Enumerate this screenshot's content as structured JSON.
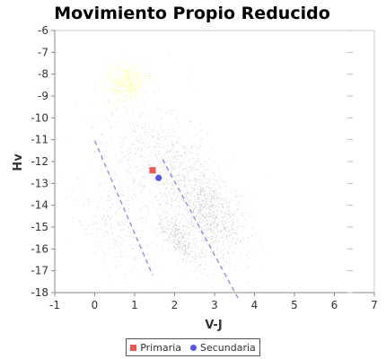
{
  "chart_data": {
    "type": "scatter",
    "title": "Movimiento Propio Reducido",
    "xlabel": "V-J",
    "ylabel": "Hv",
    "xlim": [
      -1,
      7
    ],
    "ylim": [
      -18,
      -6
    ],
    "y_inverted": true,
    "x_ticks": [
      -1,
      0,
      1,
      2,
      3,
      4,
      5,
      6,
      7
    ],
    "y_ticks": [
      -6,
      -7,
      -8,
      -9,
      -10,
      -11,
      -12,
      -13,
      -14,
      -15,
      -16,
      -17,
      -18
    ],
    "grid": false,
    "legend_position": "bottom",
    "series": [
      {
        "name": "Primaria",
        "marker": "square",
        "color": "#ee5555",
        "points": [
          [
            1.45,
            -12.4
          ]
        ]
      },
      {
        "name": "Secundaria",
        "marker": "circle",
        "color": "#5555ee",
        "points": [
          [
            1.6,
            -12.75
          ]
        ]
      }
    ],
    "background_population": {
      "color": "#999999",
      "highlight_color": "#ffff99",
      "clusters": [
        {
          "center": [
            2.8,
            -14.3
          ],
          "spread": [
            0.9,
            1.8
          ],
          "weight": 0.45
        },
        {
          "center": [
            2.1,
            -15.6
          ],
          "spread": [
            0.5,
            0.8
          ],
          "weight": 0.15
        },
        {
          "center": [
            1.6,
            -12.0
          ],
          "spread": [
            1.3,
            2.6
          ],
          "weight": 0.3
        },
        {
          "center": [
            0.5,
            -15.0
          ],
          "spread": [
            0.9,
            1.6
          ],
          "weight": 0.1
        }
      ],
      "highlight_cluster": {
        "center": [
          0.75,
          -8.1
        ],
        "spread": [
          0.25,
          0.5
        ]
      }
    },
    "reference_lines": [
      {
        "points": [
          [
            0.0,
            -11.05
          ],
          [
            1.45,
            -17.2
          ]
        ],
        "style": "dashed",
        "color": "#8888ee"
      },
      {
        "points": [
          [
            1.7,
            -11.9
          ],
          [
            3.6,
            -18.3
          ]
        ],
        "style": "dashed",
        "color": "#8888ee"
      }
    ]
  }
}
